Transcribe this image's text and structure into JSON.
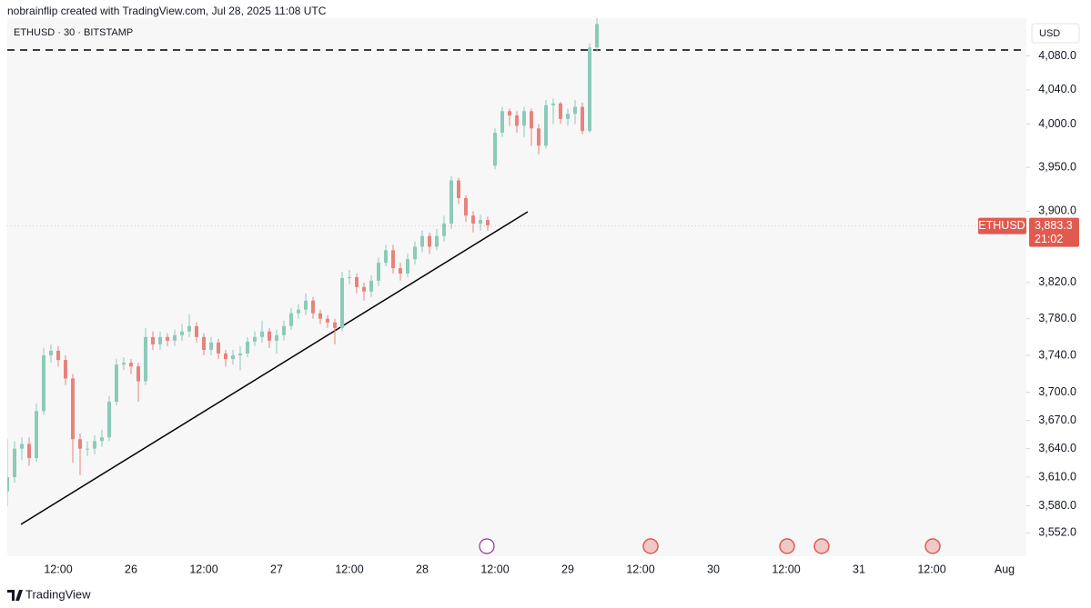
{
  "chart_data": {
    "type": "candlestick",
    "title": "nobrainflip created with TradingView.com, Jul 28, 2025 11:08 UTC",
    "subtitle": "ETHUSD · 30 · BITSTAMP",
    "currency": "USD",
    "footer": "TradingView",
    "log_scale": true,
    "up_color": "#8ccab9",
    "down_color": "#e8837c",
    "ylim": [
      3528,
      4125
    ],
    "yticks": [
      {
        "value": 4080,
        "label": "4,080.0"
      },
      {
        "value": 4040,
        "label": "4,040.0"
      },
      {
        "value": 4000,
        "label": "4,000.0"
      },
      {
        "value": 3950,
        "label": "3,950.0"
      },
      {
        "value": 3900,
        "label": "3,900.0"
      },
      {
        "value": 3820,
        "label": "3,820.0"
      },
      {
        "value": 3780,
        "label": "3,780.0"
      },
      {
        "value": 3740,
        "label": "3,740.0"
      },
      {
        "value": 3700,
        "label": "3,700.0"
      },
      {
        "value": 3670,
        "label": "3,670.0"
      },
      {
        "value": 3640,
        "label": "3,640.0"
      },
      {
        "value": 3610,
        "label": "3,610.0"
      },
      {
        "value": 3580,
        "label": "3,580.0"
      },
      {
        "value": 3552,
        "label": "3,552.0"
      }
    ],
    "price_label": {
      "symbol": "ETHUSD",
      "value": 3883.3,
      "label": "3,883.3",
      "countdown": "21:02",
      "color": "#e05a4f"
    },
    "categories": [
      null,
      null,
      null,
      null,
      null,
      null,
      null,
      "12:00",
      null,
      null,
      null,
      null,
      null,
      null,
      null,
      null,
      null,
      "26",
      null,
      null,
      null,
      null,
      null,
      null,
      null,
      null,
      null,
      "12:00",
      null,
      null,
      null,
      null,
      null,
      null,
      null,
      null,
      null,
      "27",
      null,
      null,
      null,
      null,
      null,
      null,
      null,
      null,
      null,
      "12:00",
      null,
      null,
      null,
      null,
      null,
      null,
      null,
      null,
      null,
      "28",
      null,
      null,
      null,
      null,
      null,
      null,
      null,
      null,
      null,
      "12:00",
      null,
      null,
      null,
      null,
      null,
      null,
      null,
      null,
      null,
      "29",
      null,
      null,
      null,
      null,
      null,
      null,
      null,
      null,
      null,
      "12:00",
      null,
      null,
      null,
      null,
      null,
      null,
      null,
      null,
      null,
      "30",
      null,
      null,
      null,
      null,
      null,
      null,
      null,
      null,
      null,
      "12:00",
      null,
      null,
      null,
      null,
      null,
      null,
      null,
      null,
      null,
      "31",
      null,
      null,
      null,
      null,
      null,
      null,
      null,
      null,
      null,
      "12:00",
      null,
      null,
      null,
      null,
      null,
      null,
      null,
      null,
      null,
      "Aug",
      null,
      null,
      null
    ],
    "open": [
      3595,
      3610,
      3640,
      3645,
      3630,
      3680,
      3740,
      3745,
      3735,
      3715,
      3650,
      3640,
      3640,
      3648,
      3652,
      3690,
      3730,
      3732,
      3728,
      3712,
      3760,
      3752,
      3760,
      3756,
      3762,
      3766,
      3772,
      3760,
      3746,
      3754,
      3742,
      3736,
      3740,
      3742,
      3755,
      3760,
      3766,
      3756,
      3762,
      3772,
      3786,
      3790,
      3800,
      3786,
      3780,
      3776,
      3770,
      3825,
      3826,
      3815,
      3810,
      3822,
      3842,
      3856,
      3836,
      3830,
      3846,
      3860,
      3872,
      3860,
      3872,
      3886,
      3935,
      3915,
      3895,
      3886,
      3890,
      3952,
      3990,
      4015,
      4010,
      3998,
      4015,
      3995,
      3975,
      4022,
      4024,
      4006,
      4012,
      4020,
      3992,
      4090,
      null,
      null,
      null,
      null,
      null,
      null,
      null,
      null,
      null,
      null,
      null,
      null,
      null,
      null,
      null,
      null,
      null,
      null,
      null,
      null,
      null,
      null,
      null,
      null,
      null,
      null,
      null,
      null,
      null,
      null,
      null,
      null,
      null,
      null,
      null,
      null,
      null,
      null,
      null,
      null,
      null,
      null,
      null,
      null,
      null,
      null,
      null,
      null,
      null,
      null,
      null,
      null,
      null,
      null,
      null,
      null,
      null,
      null,
      null
    ],
    "high": [
      3650,
      3648,
      3652,
      3652,
      3688,
      3748,
      3752,
      3750,
      3740,
      3720,
      3656,
      3648,
      3654,
      3660,
      3696,
      3736,
      3738,
      3736,
      3732,
      3770,
      3766,
      3766,
      3764,
      3768,
      3774,
      3785,
      3776,
      3764,
      3760,
      3758,
      3746,
      3746,
      3750,
      3760,
      3766,
      3778,
      3770,
      3768,
      3778,
      3792,
      3796,
      3808,
      3804,
      3790,
      3784,
      3780,
      3832,
      3834,
      3830,
      3820,
      3828,
      3848,
      3862,
      3862,
      3842,
      3852,
      3866,
      3878,
      3876,
      3880,
      3895,
      3940,
      3938,
      3918,
      3900,
      3896,
      3894,
      3995,
      4020,
      4018,
      4015,
      4020,
      4018,
      4000,
      4028,
      4030,
      4026,
      4018,
      4028,
      4025,
      4095,
      4135,
      null,
      null,
      null,
      null,
      null,
      null,
      null,
      null,
      null,
      null,
      null,
      null,
      null,
      null,
      null,
      null,
      null,
      null,
      null,
      null,
      null,
      null,
      null,
      null,
      null,
      null,
      null,
      null,
      null,
      null,
      null,
      null,
      null,
      null,
      null,
      null,
      null,
      null,
      null,
      null,
      null,
      null,
      null,
      null,
      null,
      null,
      null,
      null,
      null,
      null,
      null,
      null,
      null,
      null,
      null,
      null,
      null,
      null,
      null
    ],
    "low": [
      3580,
      3604,
      3628,
      3622,
      3626,
      3676,
      3732,
      3728,
      3708,
      3625,
      3612,
      3632,
      3634,
      3642,
      3648,
      3686,
      3724,
      3720,
      3690,
      3708,
      3746,
      3746,
      3750,
      3750,
      3756,
      3760,
      3754,
      3740,
      3740,
      3736,
      3728,
      3730,
      3724,
      3738,
      3750,
      3754,
      3748,
      3742,
      3756,
      3768,
      3780,
      3784,
      3780,
      3774,
      3770,
      3752,
      3766,
      3818,
      3808,
      3800,
      3804,
      3816,
      3838,
      3830,
      3822,
      3826,
      3840,
      3854,
      3852,
      3856,
      3866,
      3880,
      3908,
      3888,
      3876,
      3878,
      3878,
      3948,
      3985,
      3998,
      3990,
      3985,
      3975,
      3965,
      3972,
      4000,
      4000,
      3998,
      4000,
      3988,
      3990,
      4085,
      null,
      null,
      null,
      null,
      null,
      null,
      null,
      null,
      null,
      null,
      null,
      null,
      null,
      null,
      null,
      null,
      null,
      null,
      null,
      null,
      null,
      null,
      null,
      null,
      null,
      null,
      null,
      null,
      null,
      null,
      null,
      null,
      null,
      null,
      null,
      null,
      null,
      null,
      null,
      null,
      null,
      null,
      null,
      null,
      null,
      null,
      null,
      null,
      null,
      null,
      null,
      null,
      null,
      null,
      null,
      null,
      null,
      null,
      null
    ],
    "close": [
      3610,
      3640,
      3645,
      3630,
      3680,
      3740,
      3745,
      3735,
      3715,
      3650,
      3640,
      3640,
      3648,
      3652,
      3690,
      3730,
      3732,
      3728,
      3712,
      3760,
      3752,
      3760,
      3756,
      3762,
      3766,
      3772,
      3760,
      3746,
      3754,
      3742,
      3736,
      3740,
      3742,
      3755,
      3760,
      3766,
      3756,
      3762,
      3772,
      3786,
      3790,
      3800,
      3786,
      3780,
      3776,
      3770,
      3825,
      3826,
      3815,
      3810,
      3822,
      3842,
      3856,
      3836,
      3830,
      3846,
      3860,
      3872,
      3860,
      3872,
      3886,
      3935,
      3915,
      3895,
      3886,
      3890,
      3884,
      3990,
      4015,
      4010,
      3998,
      4015,
      3995,
      3975,
      4022,
      4024,
      4006,
      4012,
      4020,
      3992,
      4090,
      4118,
      null,
      null,
      null,
      null,
      null,
      null,
      null,
      null,
      null,
      null,
      null,
      null,
      null,
      null,
      null,
      null,
      null,
      null,
      null,
      null,
      null,
      null,
      null,
      null,
      null,
      null,
      null,
      null,
      null,
      null,
      null,
      null,
      null,
      null,
      null,
      null,
      null,
      null,
      null,
      null,
      null,
      null,
      null,
      null,
      null,
      null,
      null,
      null,
      null,
      null,
      null,
      null,
      null,
      null,
      null,
      null,
      null,
      null,
      null
    ]
  }
}
